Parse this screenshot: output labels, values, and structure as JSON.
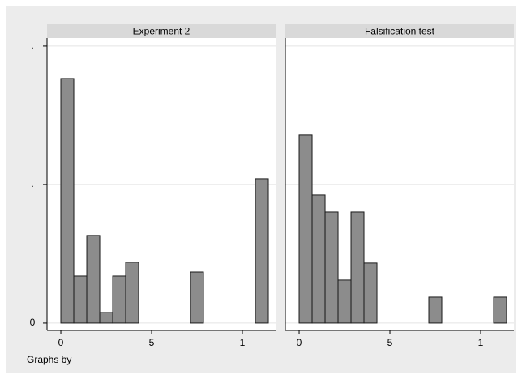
{
  "chart_data": {
    "type": "histogram",
    "note": "Graphs by",
    "ylim": [
      -0.0053,
      0.2058
    ],
    "yticks": [
      0,
      {
        "value": 0.1,
        "label": "."
      },
      {
        "value": 0.2,
        "label": "."
      }
    ],
    "grid": true,
    "color": "#8c8c8c",
    "panels": [
      {
        "title": "Experiment 2",
        "bins": [
          0,
          0.714,
          1.429,
          2.143,
          2.857,
          3.571,
          4.286,
          5,
          5.714,
          6.429,
          7.143,
          7.857,
          8.571,
          9.286,
          10,
          10.714,
          11.429
        ],
        "values": [
          0.1766,
          0.0339,
          0.0632,
          0.0076,
          0.0339,
          0.0439,
          0,
          0,
          0,
          0,
          0.0368,
          0,
          0,
          0,
          0,
          0.1041
        ],
        "xlim": [
          -0.76,
          11.83
        ],
        "xticks": [
          0,
          5,
          {
            "value": 10,
            "label": "1"
          }
        ]
      },
      {
        "title": "Falsification test",
        "bins": [
          0,
          0.714,
          1.429,
          2.143,
          2.857,
          3.571,
          4.286,
          5,
          5.714,
          6.429,
          7.143,
          7.857,
          8.571,
          9.286,
          10,
          10.714,
          11.429
        ],
        "values": [
          0.1357,
          0.0924,
          0.0801,
          0.031,
          0.0801,
          0.0433,
          0,
          0,
          0,
          0,
          0.0187,
          0,
          0,
          0,
          0,
          0.0187
        ],
        "xlim": [
          -0.76,
          11.83
        ],
        "xticks": [
          0,
          5,
          {
            "value": 10,
            "label": "1"
          }
        ]
      }
    ]
  }
}
